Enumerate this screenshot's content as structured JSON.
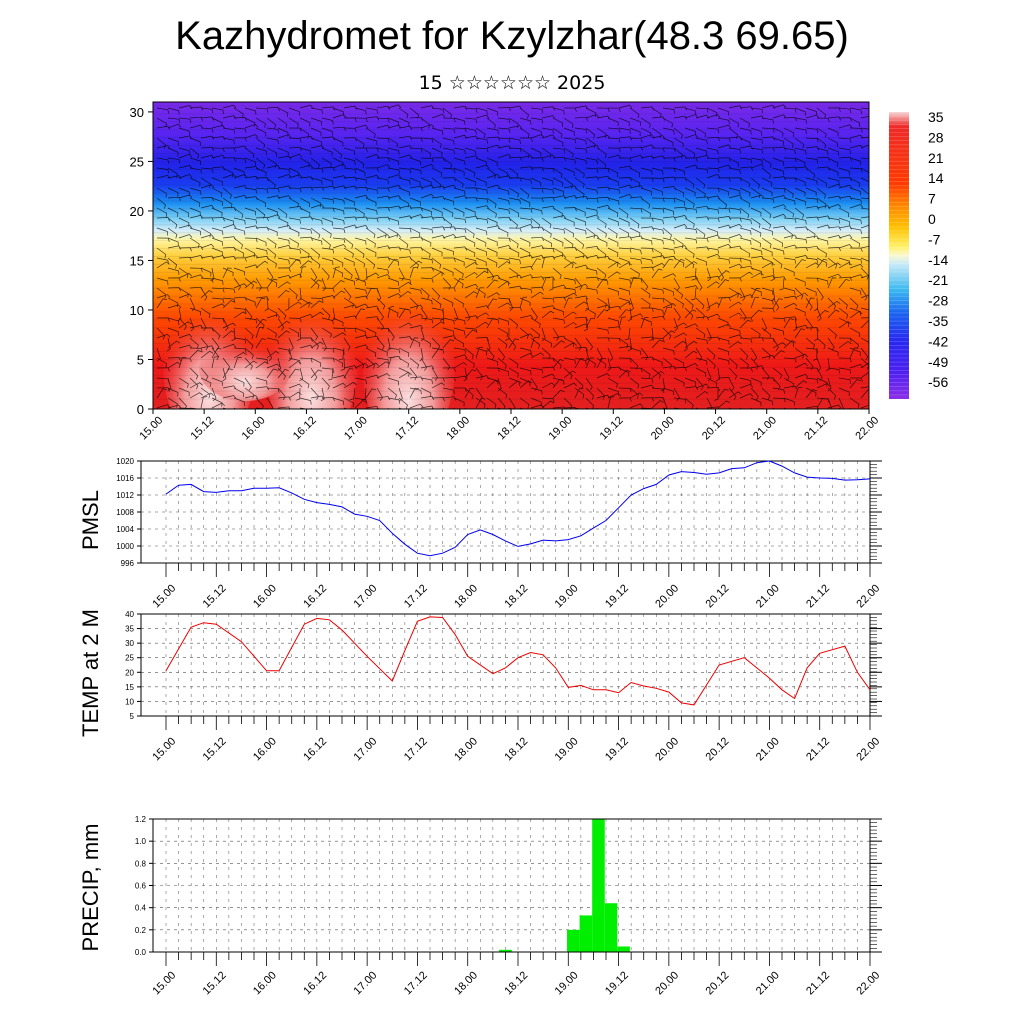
{
  "header": {
    "title": "Kazhydromet for Kzylzhar(48.3 69.65)",
    "subtitle": "15 ☆☆☆☆☆☆ 2025"
  },
  "chart_data": [
    {
      "type": "heatmap",
      "title": "",
      "x_tick_labels": [
        "15.00",
        "15.12",
        "16.00",
        "16.12",
        "17.00",
        "17.12",
        "18.00",
        "18.12",
        "19.00",
        "19.12",
        "20.00",
        "20.12",
        "21.00",
        "21.12",
        "22.00"
      ],
      "y_ticks": [
        0,
        5,
        10,
        15,
        20,
        25,
        30
      ],
      "ylim": [
        0,
        31
      ],
      "colorbar": {
        "labels": [
          "35",
          "28",
          "21",
          "14",
          "7",
          "0",
          "-7",
          "-14",
          "-21",
          "-28",
          "-35",
          "-42",
          "-49",
          "-56"
        ],
        "colors": [
          "#f4cccc",
          "#ee2020",
          "#ff5a00",
          "#ffb300",
          "#fff060",
          "#fbf8c8",
          "#c8e8f8",
          "#3ab8f0",
          "#1a6ef0",
          "#2828f0",
          "#6e20f0",
          "#8c2ee8"
        ]
      },
      "overlay": "wind barbs"
    },
    {
      "type": "line",
      "ylabel": "PMSL",
      "x_tick_labels": [
        "15.00",
        "15.12",
        "16.00",
        "16.12",
        "17.00",
        "17.12",
        "18.00",
        "18.12",
        "19.00",
        "19.12",
        "20.00",
        "20.12",
        "21.00",
        "21.12",
        "22.00"
      ],
      "y_ticks": [
        996,
        1000,
        1004,
        1008,
        1012,
        1016,
        1020
      ],
      "ylim": [
        996,
        1020
      ],
      "color": "#0000ee",
      "x": [
        0,
        0.25,
        0.5,
        0.75,
        1,
        1.25,
        1.5,
        1.75,
        2,
        2.25,
        2.5,
        2.75,
        3,
        3.25,
        3.5,
        3.75,
        4,
        4.25,
        4.5,
        4.75,
        5,
        5.25,
        5.5,
        5.75,
        6,
        6.25,
        6.5,
        6.75,
        7,
        7.25,
        7.5,
        7.75,
        8,
        8.25,
        8.5,
        8.75,
        9,
        9.25,
        9.5,
        9.75,
        10,
        10.25,
        10.5,
        10.75,
        11,
        11.25,
        11.5,
        11.75,
        12,
        12.25,
        12.5,
        12.75,
        13,
        13.25,
        13.5,
        13.75,
        14
      ],
      "values": [
        1012.2,
        1014.3,
        1014.5,
        1012.8,
        1012.6,
        1013.0,
        1013.0,
        1013.6,
        1013.6,
        1013.7,
        1012.5,
        1011.0,
        1010.2,
        1009.8,
        1009.2,
        1007.5,
        1007.0,
        1006.0,
        1003.0,
        1000.4,
        998.3,
        997.7,
        998.3,
        999.7,
        1002.7,
        1003.8,
        1002.7,
        1001.2,
        999.9,
        1000.5,
        1001.4,
        1001.2,
        1001.5,
        1002.4,
        1004.2,
        1006.0,
        1009.0,
        1012.0,
        1013.5,
        1014.5,
        1016.7,
        1017.5,
        1017.3,
        1016.9,
        1017.2,
        1018.2,
        1018.4,
        1019.6,
        1020.0,
        1018.8,
        1017.2,
        1016.2,
        1016.0,
        1015.9,
        1015.5,
        1015.6,
        1015.8
      ]
    },
    {
      "type": "line",
      "ylabel": "TEMP at 2 M",
      "x_tick_labels": [
        "15.00",
        "15.12",
        "16.00",
        "16.12",
        "17.00",
        "17.12",
        "18.00",
        "18.12",
        "19.00",
        "19.12",
        "20.00",
        "20.12",
        "21.00",
        "21.12",
        "22.00"
      ],
      "y_ticks": [
        5,
        10,
        15,
        20,
        25,
        30,
        35,
        40
      ],
      "ylim": [
        5,
        40
      ],
      "color": "#ee0000",
      "x": [
        0,
        0.5,
        0.75,
        1,
        1.5,
        2,
        2.25,
        2.75,
        3,
        3.25,
        3.5,
        4,
        4.5,
        4.75,
        5,
        5.25,
        5.5,
        5.75,
        6,
        6.5,
        6.75,
        7,
        7.25,
        7.5,
        7.75,
        8,
        8.25,
        8.5,
        8.75,
        9,
        9.25,
        9.5,
        9.75,
        10,
        10.25,
        10.5,
        11,
        11.5,
        12,
        12.25,
        12.5,
        12.75,
        13,
        13.5,
        13.75,
        14
      ],
      "values": [
        20.5,
        35.5,
        37.0,
        36.5,
        30.5,
        20.5,
        20.5,
        36.5,
        38.5,
        38.0,
        34.5,
        25.5,
        17.0,
        27.5,
        37.5,
        39.0,
        38.8,
        33.0,
        25.5,
        19.5,
        21.5,
        25.0,
        26.8,
        26.0,
        21.5,
        14.8,
        15.5,
        14.0,
        14.0,
        13.0,
        16.5,
        15.3,
        14.5,
        13.2,
        9.5,
        8.8,
        22.5,
        25.0,
        18.0,
        14.0,
        11.0,
        21.5,
        26.5,
        29.0,
        20.0,
        14.0
      ]
    },
    {
      "type": "bar",
      "ylabel": "PRECIP, mm",
      "x_tick_labels": [
        "15.00",
        "15.12",
        "16.00",
        "16.12",
        "17.00",
        "17.12",
        "18.00",
        "18.12",
        "19.00",
        "19.12",
        "20.00",
        "20.12",
        "21.00",
        "21.12",
        "22.00"
      ],
      "y_ticks": [
        0.0,
        0.2,
        0.4,
        0.6,
        0.8,
        1.0,
        1.2
      ],
      "ylim": [
        0,
        1.2
      ],
      "color": "#00ee00",
      "bar_x": [
        6.75,
        8.0,
        8.25,
        8.5,
        8.75,
        9.0
      ],
      "values": [
        0.02,
        0.2,
        0.33,
        1.2,
        0.44,
        0.05
      ]
    }
  ]
}
